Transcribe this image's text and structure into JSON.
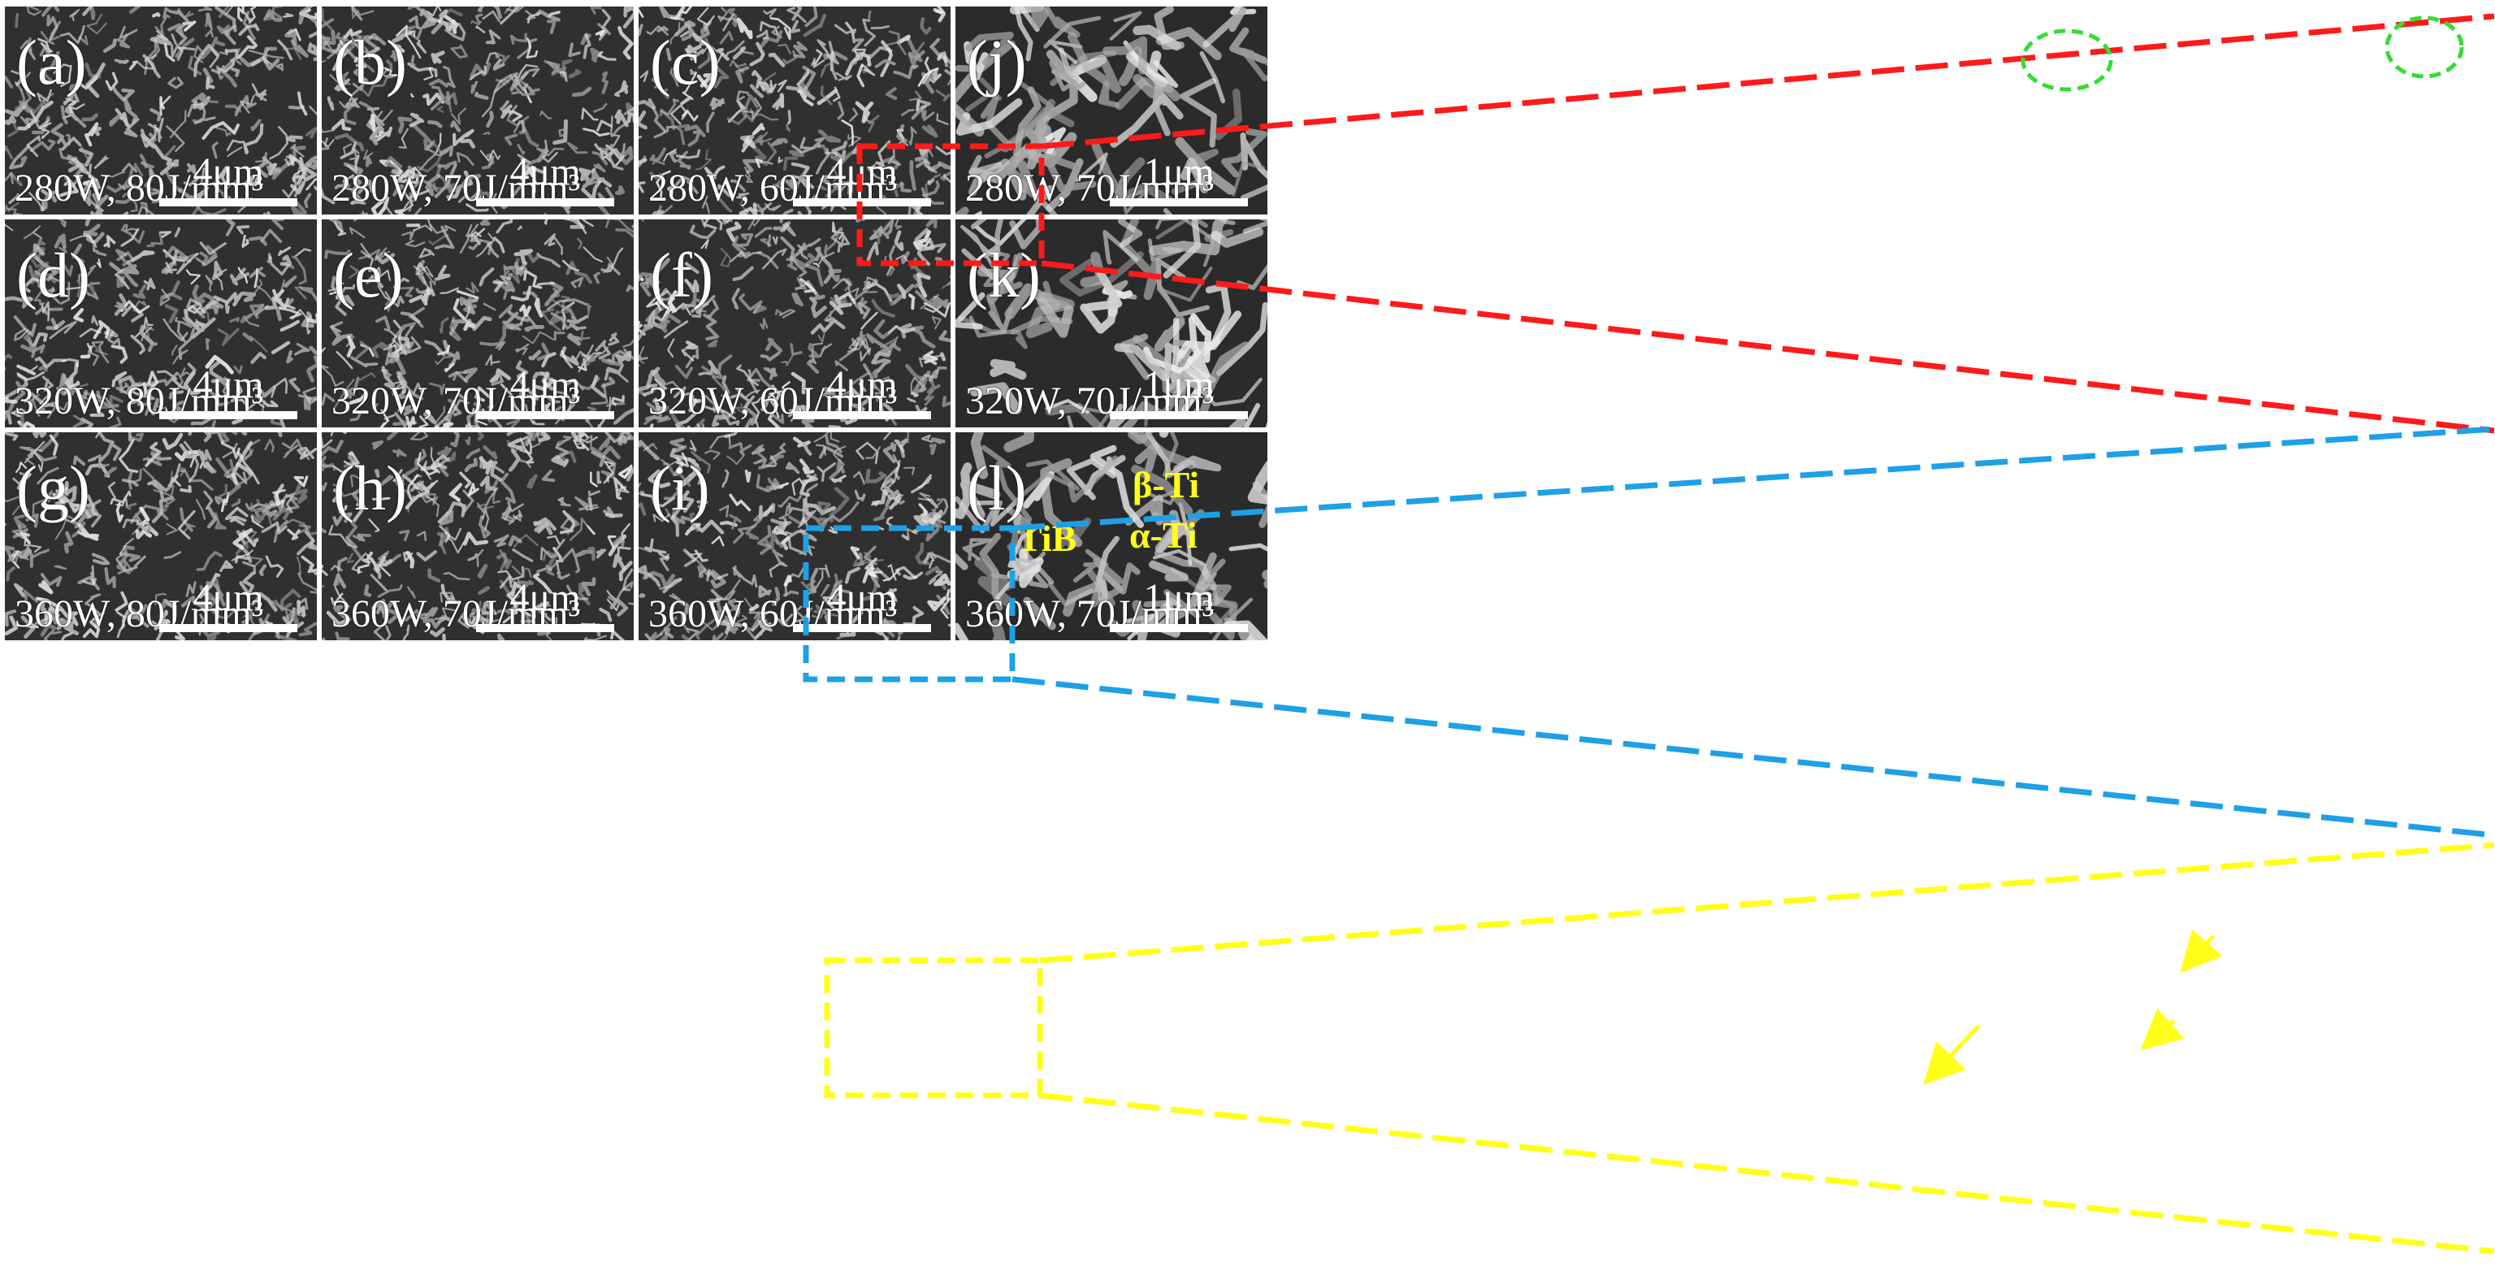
{
  "panels": [
    {
      "id": "a",
      "label": "(a)",
      "condition": "280W, 80J/mm³",
      "scale": "4μm"
    },
    {
      "id": "b",
      "label": "(b)",
      "condition": "280W, 70J/mm³",
      "scale": "4μm"
    },
    {
      "id": "c",
      "label": "(c)",
      "condition": "280W, 60J/mm³",
      "scale": "4μm"
    },
    {
      "id": "j",
      "label": "(j)",
      "condition": "280W, 70J/mm³",
      "scale": "1μm"
    },
    {
      "id": "d",
      "label": "(d)",
      "condition": "320W, 80J/mm³",
      "scale": "4μm"
    },
    {
      "id": "e",
      "label": "(e)",
      "condition": "320W, 70J/mm³",
      "scale": "4μm"
    },
    {
      "id": "f",
      "label": "(f)",
      "condition": "320W, 60J/mm³",
      "scale": "4μm"
    },
    {
      "id": "k",
      "label": "(k)",
      "condition": "320W, 70J/mm³",
      "scale": "1μm"
    },
    {
      "id": "g",
      "label": "(g)",
      "condition": "360W, 80J/mm³",
      "scale": "4μm"
    },
    {
      "id": "h",
      "label": "(h)",
      "condition": "360W, 70J/mm³",
      "scale": "4μm"
    },
    {
      "id": "i",
      "label": "(i)",
      "condition": "360W, 60J/mm³",
      "scale": "4μm"
    },
    {
      "id": "l",
      "label": "(l)",
      "condition": "360W, 70J/mm³",
      "scale": "1μm"
    }
  ],
  "annotations": {
    "tib": "TiB",
    "beta": "β-Ti",
    "alpha": "α-Ti"
  },
  "colors": {
    "zoom_row1": "#ff1a1a",
    "zoom_row2": "#1ea0e6",
    "zoom_row3": "#ffff1a",
    "circle": "#33dd33",
    "phase_text": "#ffff1a"
  }
}
